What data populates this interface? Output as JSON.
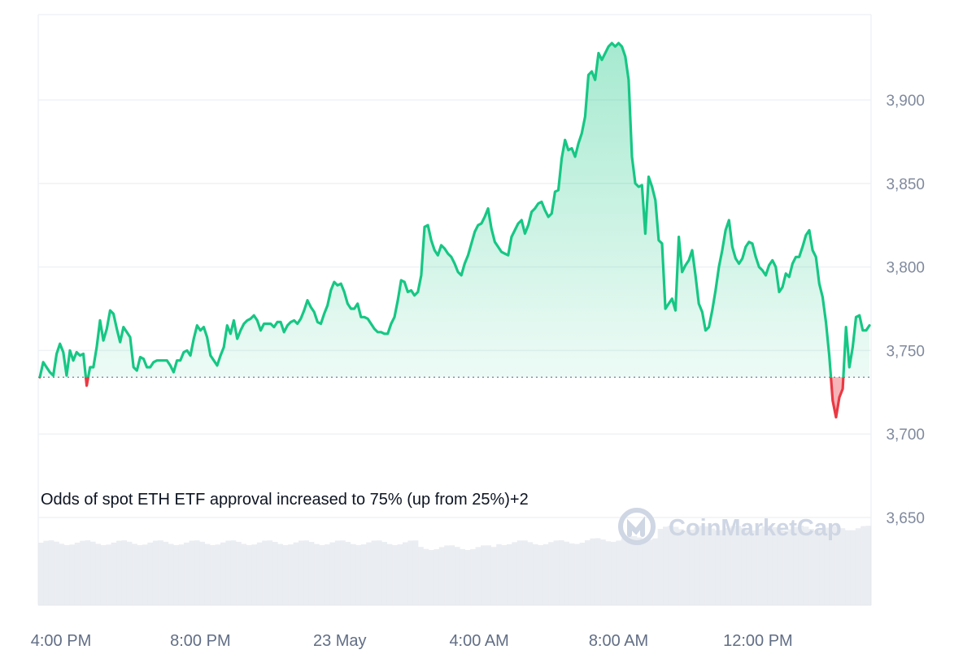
{
  "chart_data": {
    "type": "area",
    "x_ticks": [
      "4:00 PM",
      "8:00 PM",
      "23 May",
      "4:00 AM",
      "8:00 AM",
      "12:00 PM"
    ],
    "y_ticks": [
      "3,650",
      "3,700",
      "3,750",
      "3,800",
      "3,850",
      "3,900"
    ],
    "ylim": [
      3600,
      3950
    ],
    "baseline": 3734,
    "grid": true,
    "y_axis_side": "right",
    "annotation": "Odds of spot ETH ETF approval increased to 75% (up from 25%)+2",
    "watermark": "CoinMarketCap",
    "colors": {
      "up": "#16c784",
      "down": "#ea3943",
      "grid": "#eff2f5",
      "volume": "#e3e7ec",
      "tick_text": "#808a9d"
    },
    "series": [
      {
        "values": [
          3734,
          3743,
          3740,
          3737,
          3735,
          3748,
          3754,
          3749,
          3735,
          3750,
          3744,
          3749,
          3747,
          3748,
          3729,
          3740,
          3740,
          3752,
          3768,
          3756,
          3763,
          3774,
          3772,
          3763,
          3755,
          3764,
          3761,
          3758,
          3740,
          3738,
          3746,
          3745,
          3740,
          3740,
          3743,
          3744,
          3744,
          3744,
          3744,
          3741,
          3737,
          3744,
          3744,
          3749,
          3750,
          3747,
          3757,
          3765,
          3762,
          3764,
          3758,
          3747,
          3744,
          3741,
          3747,
          3752,
          3765,
          3760,
          3768,
          3757,
          3762,
          3766,
          3768,
          3769,
          3771,
          3768,
          3762,
          3766,
          3766,
          3766,
          3764,
          3767,
          3767,
          3761,
          3765,
          3767,
          3768,
          3766,
          3769,
          3774,
          3780,
          3776,
          3773,
          3767,
          3766,
          3772,
          3777,
          3786,
          3791,
          3789,
          3790,
          3785,
          3778,
          3775,
          3775,
          3778,
          3770,
          3770,
          3769,
          3766,
          3763,
          3761,
          3761,
          3760,
          3760,
          3766,
          3770,
          3780,
          3792,
          3791,
          3785,
          3786,
          3783,
          3785,
          3795,
          3824,
          3825,
          3816,
          3810,
          3807,
          3813,
          3811,
          3808,
          3806,
          3802,
          3797,
          3795,
          3802,
          3807,
          3814,
          3821,
          3825,
          3826,
          3830,
          3835,
          3823,
          3815,
          3812,
          3809,
          3808,
          3807,
          3818,
          3822,
          3826,
          3828,
          3820,
          3825,
          3833,
          3835,
          3838,
          3839,
          3834,
          3830,
          3832,
          3845,
          3846,
          3865,
          3876,
          3870,
          3871,
          3866,
          3874,
          3880,
          3890,
          3915,
          3917,
          3912,
          3928,
          3924,
          3928,
          3932,
          3934,
          3932,
          3934,
          3932,
          3926,
          3912,
          3866,
          3850,
          3848,
          3849,
          3820,
          3854,
          3848,
          3840,
          3816,
          3814,
          3775,
          3778,
          3781,
          3774,
          3818,
          3797,
          3801,
          3804,
          3810,
          3795,
          3778,
          3773,
          3762,
          3764,
          3774,
          3786,
          3800,
          3810,
          3822,
          3828,
          3812,
          3805,
          3802,
          3805,
          3812,
          3815,
          3814,
          3806,
          3800,
          3798,
          3795,
          3801,
          3804,
          3800,
          3785,
          3788,
          3796,
          3794,
          3802,
          3806,
          3806,
          3812,
          3819,
          3822,
          3810,
          3806,
          3790,
          3782,
          3767,
          3747,
          3720,
          3710,
          3722,
          3727,
          3764,
          3740,
          3752,
          3770,
          3771,
          3762,
          3762,
          3765
        ]
      }
    ]
  }
}
